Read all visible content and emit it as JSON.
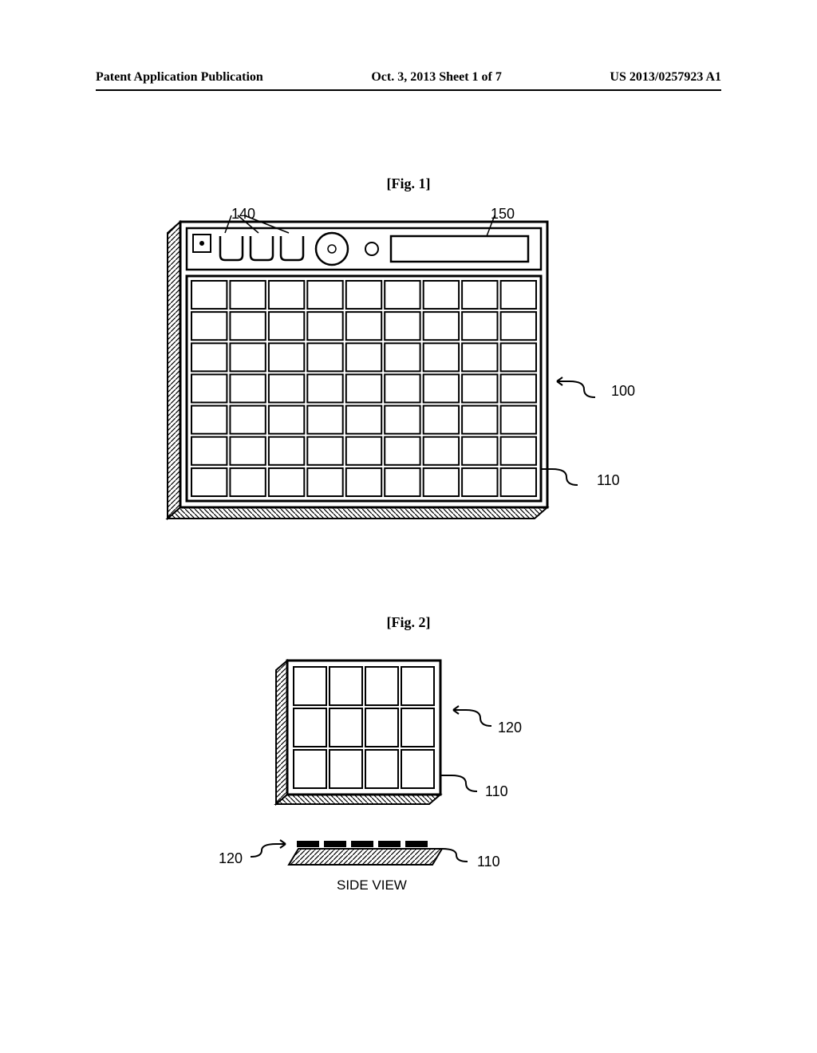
{
  "header": {
    "left": "Patent Application Publication",
    "center": "Oct. 3, 2013   Sheet 1 of 7",
    "right": "US 2013/0257923 A1"
  },
  "fig1": {
    "title": "[Fig. 1]",
    "labels": {
      "l140": "140",
      "l150": "150",
      "l100": "100",
      "l110": "110"
    },
    "grid": {
      "rows": 7,
      "cols": 9
    },
    "colors": {
      "stroke": "#000000",
      "hatch": "#000000",
      "bg": "#ffffff"
    }
  },
  "fig2": {
    "title": "[Fig. 2]",
    "labels": {
      "l120top": "120",
      "l110top": "110",
      "l120bot": "120",
      "l110bot": "110"
    },
    "caption": "SIDE VIEW",
    "grid": {
      "rows": 3,
      "cols": 4
    },
    "colors": {
      "stroke": "#000000",
      "hatch": "#000000",
      "bg": "#ffffff"
    }
  }
}
